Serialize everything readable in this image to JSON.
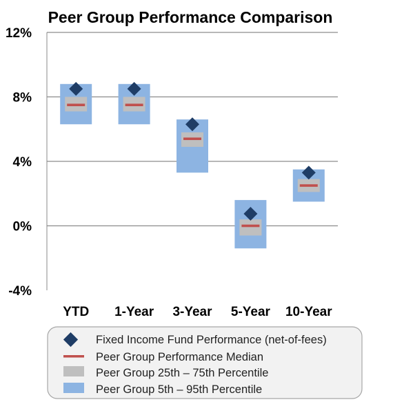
{
  "chart_data": {
    "type": "box",
    "title": "Peer Group Performance Comparison",
    "categories": [
      "YTD",
      "1-Year",
      "3-Year",
      "5-Year",
      "10-Year"
    ],
    "y_ticks": [
      "12%",
      "8%",
      "4%",
      "0%",
      "-4%"
    ],
    "ylim": [
      -4,
      12
    ],
    "unit": "%",
    "grid": true,
    "legend_position": "bottom",
    "series": [
      {
        "name": "Fixed Income Fund Performance (net-of-fees)",
        "marker": "diamond",
        "color": "#1f3d66",
        "values": [
          8.5,
          8.5,
          6.3,
          0.75,
          3.3
        ]
      },
      {
        "name": "Peer Group Performance Median",
        "marker": "dash",
        "color": "#c0504d",
        "values": [
          7.5,
          7.5,
          5.4,
          0.0,
          2.5
        ]
      },
      {
        "name": "Peer Group 25th – 75th Percentile",
        "marker": "box",
        "color": "#bfbfbf",
        "ranges": [
          [
            7.1,
            8.0
          ],
          [
            7.1,
            8.0
          ],
          [
            4.9,
            5.8
          ],
          [
            -0.6,
            0.4
          ],
          [
            2.1,
            2.9
          ]
        ]
      },
      {
        "name": "Peer Group 5th – 95th Percentile",
        "marker": "box",
        "color": "#8db4e2",
        "ranges": [
          [
            6.3,
            8.8
          ],
          [
            6.3,
            8.8
          ],
          [
            3.3,
            6.6
          ],
          [
            -1.4,
            1.6
          ],
          [
            1.5,
            3.5
          ]
        ]
      }
    ]
  }
}
